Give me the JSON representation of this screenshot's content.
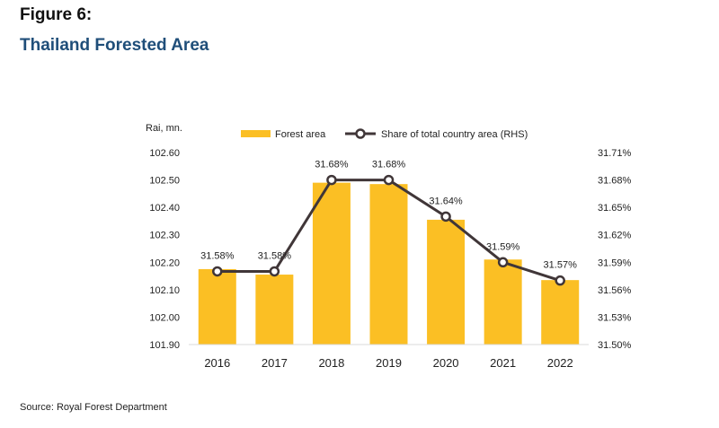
{
  "figure_label": "Figure 6:",
  "title": "Thailand Forested Area",
  "source": "Source: Royal Forest Department",
  "colors": {
    "bar": "#fbbf24",
    "line": "#403638",
    "marker_fill": "#ffffff",
    "title": "#1f4e79"
  },
  "chart_data": {
    "type": "bar",
    "categories": [
      "2016",
      "2017",
      "2018",
      "2019",
      "2020",
      "2021",
      "2022"
    ],
    "y_left_label": "Rai, mn.",
    "ylim": [
      101.9,
      102.6
    ],
    "y_left_ticks": [
      "101.90",
      "102.00",
      "102.10",
      "102.20",
      "102.30",
      "102.40",
      "102.50",
      "102.60"
    ],
    "y2lim": [
      31.5,
      31.71
    ],
    "y_right_ticks": [
      "31.50%",
      "31.53%",
      "31.56%",
      "31.59%",
      "31.62%",
      "31.65%",
      "31.68%",
      "31.71%"
    ],
    "series": [
      {
        "name": "Forest area",
        "type": "bar",
        "axis": "left",
        "values": [
          102.175,
          102.155,
          102.49,
          102.485,
          102.355,
          102.21,
          102.135
        ]
      },
      {
        "name": "Share of total country area (RHS)",
        "type": "line",
        "axis": "right",
        "values": [
          31.58,
          31.58,
          31.68,
          31.68,
          31.64,
          31.59,
          31.57
        ],
        "labels": [
          "31.58%",
          "31.58%",
          "31.68%",
          "31.68%",
          "31.64%",
          "31.59%",
          "31.57%"
        ]
      }
    ],
    "legend_position": "top",
    "grid": false
  }
}
